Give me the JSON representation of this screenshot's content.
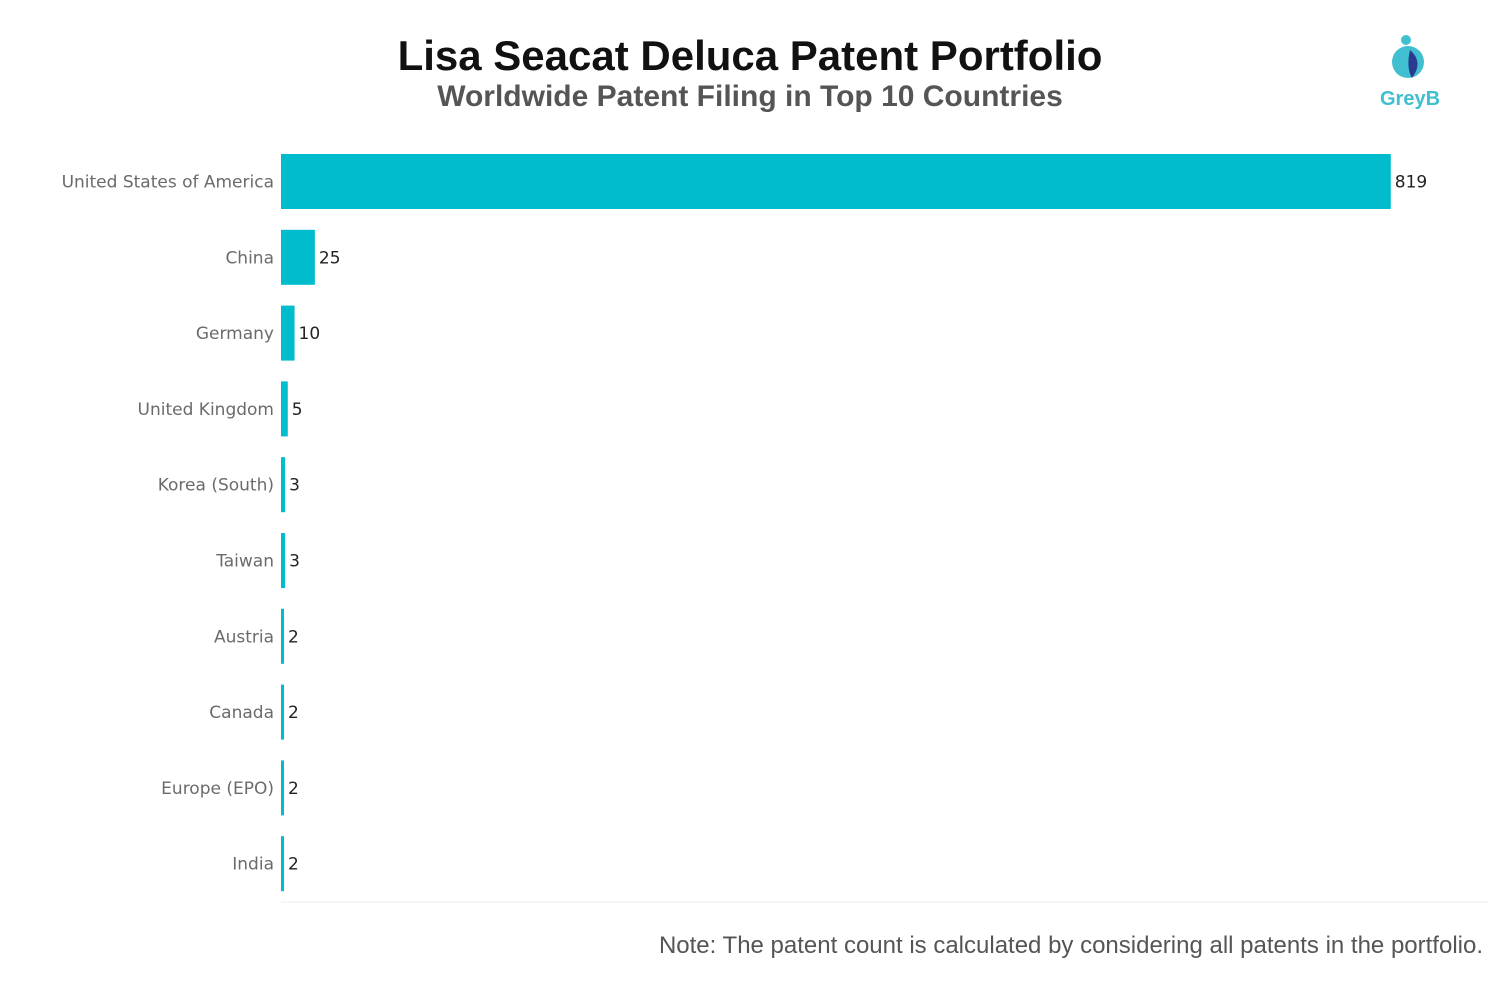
{
  "header": {
    "title": "Lisa Seacat Deluca Patent Portfolio",
    "subtitle": "Worldwide Patent Filing in Top 10 Countries"
  },
  "logo": {
    "text": "GreyB",
    "icon": "greyb-logo-icon",
    "colors": {
      "primary": "#3fbfcf",
      "secondary": "#2a3a8f"
    }
  },
  "note": "Note: The patent count is calculated by considering all patents in the portfolio.",
  "chart_data": {
    "type": "bar",
    "orientation": "horizontal",
    "title": "Lisa Seacat Deluca Patent Portfolio",
    "subtitle": "Worldwide Patent Filing in Top 10 Countries",
    "xlabel": "",
    "ylabel": "",
    "categories": [
      "United States of America",
      "China",
      "Germany",
      "United Kingdom",
      "Korea (South)",
      "Taiwan",
      "Austria",
      "Canada",
      "Europe (EPO)",
      "India"
    ],
    "values": [
      819,
      25,
      10,
      5,
      3,
      3,
      2,
      2,
      2,
      2
    ],
    "xlim": [
      0,
      890
    ],
    "grid": false,
    "legend": "none",
    "bar_color": "#00bccd"
  }
}
